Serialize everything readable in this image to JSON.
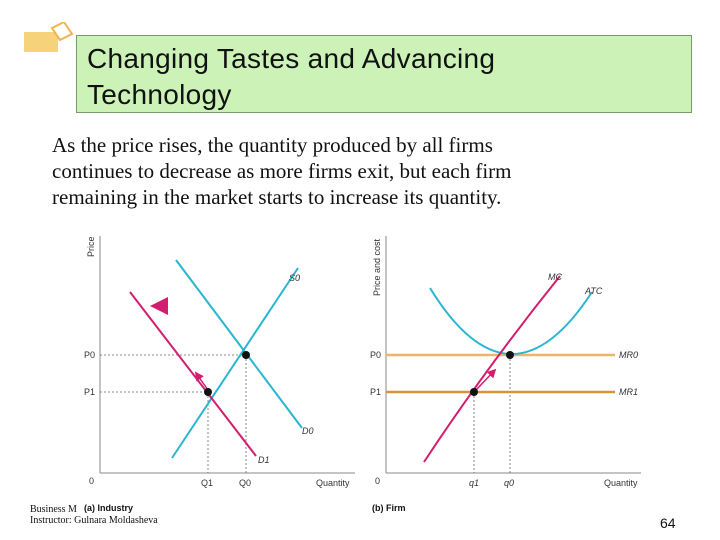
{
  "slide": {
    "title_line1": "Changing Tastes and Advancing",
    "title_line2": "Technology",
    "subtitle_line1": "As the price rises, the quantity produced by all firms",
    "subtitle_line2": "continues to decrease as more firms exit, but each firm",
    "subtitle_line3": "remaining in the market starts to increase its quantity.",
    "footer_line1": "Business M",
    "footer_line2": "Instructor: Gulnara Moldasheva",
    "page_number": "64"
  },
  "colors": {
    "supply": "#2ab5d0",
    "demand": "#d21e6e",
    "mc": "#d21e6e",
    "atc": "#2ab5d0",
    "mr0": "#f0b468",
    "mr1": "#d7913a",
    "arrow_shift": "#2ab5d0",
    "title_bg": "#ccf2b8"
  },
  "chart_data": [
    {
      "type": "line",
      "title": "(a) Industry",
      "xlabel": "Quantity",
      "ylabel": "Price",
      "origin_label": "0",
      "x_ticks": [
        "Q1",
        "Q0"
      ],
      "y_ticks": [
        "P0",
        "P1"
      ],
      "series": [
        {
          "name": "S0",
          "kind": "supply",
          "label": "S0"
        },
        {
          "name": "D0",
          "kind": "demand",
          "label": "D0"
        },
        {
          "name": "D1",
          "kind": "demand",
          "label": "D1"
        }
      ],
      "equilibria": [
        {
          "name": "initial",
          "x_label": "Q0",
          "y_label": "P0"
        },
        {
          "name": "new",
          "x_label": "Q1",
          "y_label": "P1"
        }
      ],
      "annotations": [
        "demand shift left",
        "movement along D1 toward higher price"
      ]
    },
    {
      "type": "line",
      "title": "(b) Firm",
      "xlabel": "Quantity",
      "ylabel": "Price and cost",
      "origin_label": "0",
      "x_ticks": [
        "q1",
        "q0"
      ],
      "y_ticks": [
        "P0",
        "P1"
      ],
      "series": [
        {
          "name": "MC",
          "label": "MC"
        },
        {
          "name": "ATC",
          "label": "ATC"
        },
        {
          "name": "MR0",
          "label": "MR0"
        },
        {
          "name": "MR1",
          "label": "MR1"
        }
      ],
      "equilibria": [
        {
          "name": "initial",
          "x_label": "q0",
          "y_label": "P0"
        },
        {
          "name": "new",
          "x_label": "q1",
          "y_label": "P1"
        }
      ],
      "annotations": [
        "movement up along MC"
      ]
    }
  ]
}
